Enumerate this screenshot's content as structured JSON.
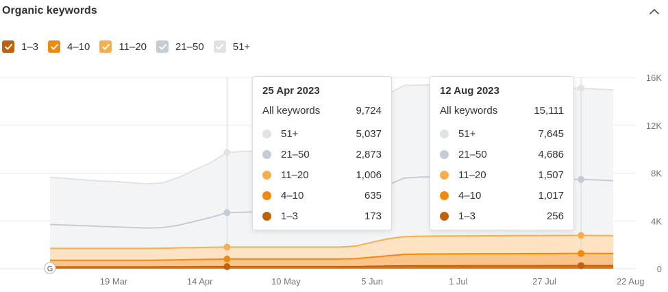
{
  "header": {
    "title": "Organic keywords"
  },
  "legend": [
    {
      "label": "1–3",
      "color": "#c0620c",
      "checked": true
    },
    {
      "label": "4–10",
      "color": "#f08a0c",
      "checked": true
    },
    {
      "label": "11–20",
      "color": "#f7ae4c",
      "checked": true
    },
    {
      "label": "21–50",
      "color": "#c5ccd6",
      "checked": true
    },
    {
      "label": "51+",
      "color": "#dfe3e8",
      "checked": true
    }
  ],
  "tooltips": [
    {
      "date": "25 Apr 2023",
      "total_label": "All keywords",
      "total_value": "9,724",
      "rows": [
        {
          "label": "51+",
          "value": "5,037",
          "color": "#dfe3e8"
        },
        {
          "label": "21–50",
          "value": "2,873",
          "color": "#c5ccd6"
        },
        {
          "label": "11–20",
          "value": "1,006",
          "color": "#f7ae4c"
        },
        {
          "label": "4–10",
          "value": "635",
          "color": "#f08a0c"
        },
        {
          "label": "1–3",
          "value": "173",
          "color": "#c0620c"
        }
      ]
    },
    {
      "date": "12 Aug 2023",
      "total_label": "All keywords",
      "total_value": "15,111",
      "rows": [
        {
          "label": "51+",
          "value": "7,645",
          "color": "#dfe3e8"
        },
        {
          "label": "21–50",
          "value": "4,686",
          "color": "#c5ccd6"
        },
        {
          "label": "11–20",
          "value": "1,507",
          "color": "#f7ae4c"
        },
        {
          "label": "4–10",
          "value": "1,017",
          "color": "#f08a0c"
        },
        {
          "label": "1–3",
          "value": "256",
          "color": "#c0620c"
        }
      ]
    }
  ],
  "chart_data": {
    "type": "area",
    "stacked": true,
    "xlabels": [
      "19 Mar",
      "14 Apr",
      "10 May",
      "5 Jun",
      "1 Jul",
      "27 Jul",
      "22 Aug"
    ],
    "ytick_labels": [
      "0",
      "4K",
      "8K",
      "12K",
      "16K"
    ],
    "ylim": [
      0,
      16000
    ],
    "grid": true,
    "x": [
      "1 Mar",
      "6 Mar",
      "11 Mar",
      "16 Mar",
      "21 Mar",
      "26 Mar",
      "31 Mar",
      "5 Apr",
      "10 Apr",
      "15 Apr",
      "20 Apr",
      "25 Apr",
      "30 Apr",
      "5 May",
      "10 May",
      "15 May",
      "20 May",
      "25 May",
      "30 May",
      "4 Jun",
      "9 Jun",
      "14 Jun",
      "19 Jun",
      "24 Jun",
      "29 Jun",
      "4 Jul",
      "9 Jul",
      "14 Jul",
      "19 Jul",
      "24 Jul",
      "29 Jul",
      "3 Aug",
      "8 Aug",
      "12 Aug",
      "17 Aug",
      "22 Aug"
    ],
    "series": [
      {
        "name": "1–3",
        "color": "#c0620c",
        "values": [
          150,
          150,
          150,
          150,
          150,
          150,
          150,
          155,
          160,
          165,
          170,
          173,
          173,
          173,
          173,
          173,
          173,
          173,
          173,
          180,
          200,
          220,
          240,
          245,
          245,
          245,
          248,
          250,
          250,
          252,
          254,
          255,
          256,
          256,
          256,
          256
        ]
      },
      {
        "name": "4–10",
        "color": "#f08a0c",
        "values": [
          550,
          550,
          550,
          550,
          550,
          550,
          550,
          560,
          580,
          600,
          620,
          635,
          635,
          635,
          635,
          635,
          635,
          635,
          635,
          660,
          760,
          860,
          960,
          980,
          990,
          995,
          1000,
          1005,
          1008,
          1010,
          1012,
          1015,
          1017,
          1017,
          1017,
          1017
        ]
      },
      {
        "name": "11–20",
        "color": "#f7ae4c",
        "values": [
          1000,
          1000,
          1000,
          1000,
          1000,
          1000,
          1000,
          1000,
          1000,
          1000,
          1000,
          1006,
          1006,
          1006,
          1006,
          1006,
          1006,
          1006,
          1006,
          1050,
          1250,
          1420,
          1480,
          1490,
          1495,
          1497,
          1499,
          1500,
          1502,
          1503,
          1504,
          1505,
          1507,
          1507,
          1500,
          1490
        ]
      },
      {
        "name": "21–50",
        "color": "#c5ccd6",
        "values": [
          2000,
          1950,
          1900,
          1850,
          1800,
          1750,
          1700,
          1720,
          1900,
          2200,
          2500,
          2873,
          2900,
          2950,
          3000,
          3000,
          3000,
          3000,
          3000,
          3300,
          3900,
          4500,
          4900,
          4950,
          4950,
          4950,
          4800,
          4750,
          4700,
          4700,
          4680,
          4690,
          4686,
          4686,
          4650,
          4600
        ]
      },
      {
        "name": "51+",
        "color": "#dfe3e8",
        "values": [
          3950,
          3900,
          3850,
          3800,
          3800,
          3750,
          3700,
          3750,
          4000,
          4300,
          4600,
          5037,
          5100,
          5050,
          5000,
          5000,
          5000,
          5000,
          5000,
          5600,
          6800,
          7600,
          7750,
          7700,
          7680,
          7670,
          7660,
          7650,
          7650,
          7650,
          7650,
          7650,
          7645,
          7645,
          7600,
          7600
        ]
      }
    ],
    "markers": [
      "25 Apr",
      "12 Aug"
    ],
    "annotations": [
      {
        "x": "19 Mar",
        "label": "G"
      },
      {
        "x": "14 Apr",
        "label": "G"
      }
    ]
  }
}
